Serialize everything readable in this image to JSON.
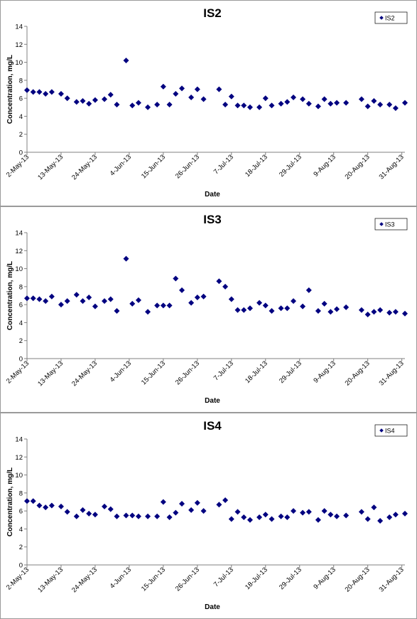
{
  "chart_data": [
    {
      "type": "scatter",
      "title": "IS2",
      "xlabel": "Date",
      "ylabel": "Concentration, mg/L",
      "ylim": [
        0,
        14
      ],
      "yticks": [
        0,
        2,
        4,
        6,
        8,
        10,
        12,
        14
      ],
      "xlim": [
        "2013-05-02",
        "2013-09-01"
      ],
      "xtick_labels": [
        "2-May-13",
        "13-May-13",
        "24-May-13",
        "4-Jun-13",
        "15-Jun-13",
        "26-Jun-13",
        "7-Jul-13",
        "18-Jul-13",
        "29-Jul-13",
        "9-Aug-13",
        "20-Aug-13",
        "31-Aug-13"
      ],
      "xtick_dates": [
        "2013-05-02",
        "2013-05-13",
        "2013-05-24",
        "2013-06-04",
        "2013-06-15",
        "2013-06-26",
        "2013-07-07",
        "2013-07-18",
        "2013-07-29",
        "2013-08-09",
        "2013-08-20",
        "2013-08-31"
      ],
      "legend": "top-right",
      "grid": false,
      "series": [
        {
          "name": "IS2",
          "color": "#000080",
          "x": [
            "2013-05-02",
            "2013-05-04",
            "2013-05-06",
            "2013-05-08",
            "2013-05-10",
            "2013-05-13",
            "2013-05-15",
            "2013-05-18",
            "2013-05-20",
            "2013-05-22",
            "2013-05-24",
            "2013-05-27",
            "2013-05-29",
            "2013-05-31",
            "2013-06-03",
            "2013-06-05",
            "2013-06-07",
            "2013-06-10",
            "2013-06-13",
            "2013-06-15",
            "2013-06-17",
            "2013-06-19",
            "2013-06-21",
            "2013-06-24",
            "2013-06-26",
            "2013-06-28",
            "2013-07-03",
            "2013-07-05",
            "2013-07-07",
            "2013-07-09",
            "2013-07-11",
            "2013-07-13",
            "2013-07-16",
            "2013-07-18",
            "2013-07-20",
            "2013-07-23",
            "2013-07-25",
            "2013-07-27",
            "2013-07-30",
            "2013-08-01",
            "2013-08-04",
            "2013-08-06",
            "2013-08-08",
            "2013-08-10",
            "2013-08-13",
            "2013-08-18",
            "2013-08-20",
            "2013-08-22",
            "2013-08-24",
            "2013-08-27",
            "2013-08-29",
            "2013-09-01"
          ],
          "y": [
            6.9,
            6.7,
            6.7,
            6.5,
            6.7,
            6.5,
            6.0,
            5.6,
            5.7,
            5.4,
            5.8,
            5.9,
            6.4,
            5.3,
            10.2,
            5.2,
            5.5,
            5.0,
            5.3,
            7.3,
            5.3,
            6.5,
            7.1,
            6.1,
            7.0,
            5.9,
            7.0,
            5.3,
            6.2,
            5.2,
            5.2,
            5.0,
            5.0,
            6.0,
            5.2,
            5.4,
            5.6,
            6.1,
            5.9,
            5.4,
            5.1,
            5.9,
            5.4,
            5.5,
            5.5,
            5.9,
            5.1,
            5.7,
            5.3,
            5.3,
            4.9,
            5.5
          ]
        }
      ]
    },
    {
      "type": "scatter",
      "title": "IS3",
      "xlabel": "Date",
      "ylabel": "Concentration, mg/L",
      "ylim": [
        0,
        14
      ],
      "yticks": [
        0,
        2,
        4,
        6,
        8,
        10,
        12,
        14
      ],
      "xlim": [
        "2013-05-02",
        "2013-09-01"
      ],
      "xtick_labels": [
        "2-May-13",
        "13-May-13",
        "24-May-13",
        "4-Jun-13",
        "15-Jun-13",
        "26-Jun-13",
        "7-Jul-13",
        "18-Jul-13",
        "29-Jul-13",
        "9-Aug-13",
        "20-Aug-13",
        "31-Aug-13"
      ],
      "xtick_dates": [
        "2013-05-02",
        "2013-05-13",
        "2013-05-24",
        "2013-06-04",
        "2013-06-15",
        "2013-06-26",
        "2013-07-07",
        "2013-07-18",
        "2013-07-29",
        "2013-08-09",
        "2013-08-20",
        "2013-08-31"
      ],
      "legend": "top-right",
      "grid": false,
      "series": [
        {
          "name": "IS3",
          "color": "#000080",
          "x": [
            "2013-05-02",
            "2013-05-04",
            "2013-05-06",
            "2013-05-08",
            "2013-05-10",
            "2013-05-13",
            "2013-05-15",
            "2013-05-18",
            "2013-05-20",
            "2013-05-22",
            "2013-05-24",
            "2013-05-27",
            "2013-05-29",
            "2013-05-31",
            "2013-06-03",
            "2013-06-05",
            "2013-06-07",
            "2013-06-10",
            "2013-06-13",
            "2013-06-15",
            "2013-06-17",
            "2013-06-19",
            "2013-06-21",
            "2013-06-24",
            "2013-06-26",
            "2013-06-28",
            "2013-07-03",
            "2013-07-05",
            "2013-07-07",
            "2013-07-09",
            "2013-07-11",
            "2013-07-13",
            "2013-07-16",
            "2013-07-18",
            "2013-07-20",
            "2013-07-23",
            "2013-07-25",
            "2013-07-27",
            "2013-07-30",
            "2013-08-01",
            "2013-08-04",
            "2013-08-06",
            "2013-08-08",
            "2013-08-10",
            "2013-08-13",
            "2013-08-18",
            "2013-08-20",
            "2013-08-22",
            "2013-08-24",
            "2013-08-27",
            "2013-08-29",
            "2013-09-01"
          ],
          "y": [
            6.7,
            6.7,
            6.6,
            6.4,
            6.9,
            6.0,
            6.4,
            7.1,
            6.4,
            6.8,
            5.8,
            6.4,
            6.6,
            5.3,
            11.1,
            6.1,
            6.5,
            5.2,
            5.9,
            5.9,
            5.9,
            8.9,
            7.6,
            6.2,
            6.8,
            6.9,
            8.6,
            8.0,
            6.6,
            5.4,
            5.4,
            5.6,
            6.2,
            5.9,
            5.3,
            5.6,
            5.6,
            6.4,
            5.8,
            7.6,
            5.3,
            6.1,
            5.2,
            5.5,
            5.7,
            5.4,
            4.9,
            5.2,
            5.4,
            5.1,
            5.2,
            5.0
          ]
        }
      ]
    },
    {
      "type": "scatter",
      "title": "IS4",
      "xlabel": "Date",
      "ylabel": "Concentration, mg/L",
      "ylim": [
        0,
        14
      ],
      "yticks": [
        0,
        2,
        4,
        6,
        8,
        10,
        12,
        14
      ],
      "xlim": [
        "2013-05-02",
        "2013-09-01"
      ],
      "xtick_labels": [
        "2-May-13",
        "13-May-13",
        "24-May-13",
        "4-Jun-13",
        "15-Jun-13",
        "26-Jun-13",
        "7-Jul-13",
        "18-Jul-13",
        "29-Jul-13",
        "9-Aug-13",
        "20-Aug-13",
        "31-Aug-13"
      ],
      "xtick_dates": [
        "2013-05-02",
        "2013-05-13",
        "2013-05-24",
        "2013-06-04",
        "2013-06-15",
        "2013-06-26",
        "2013-07-07",
        "2013-07-18",
        "2013-07-29",
        "2013-08-09",
        "2013-08-20",
        "2013-08-31"
      ],
      "legend": "top-right",
      "grid": false,
      "series": [
        {
          "name": "IS4",
          "color": "#000080",
          "x": [
            "2013-05-02",
            "2013-05-04",
            "2013-05-06",
            "2013-05-08",
            "2013-05-10",
            "2013-05-13",
            "2013-05-15",
            "2013-05-18",
            "2013-05-20",
            "2013-05-22",
            "2013-05-24",
            "2013-05-27",
            "2013-05-29",
            "2013-05-31",
            "2013-06-03",
            "2013-06-05",
            "2013-06-07",
            "2013-06-10",
            "2013-06-13",
            "2013-06-15",
            "2013-06-17",
            "2013-06-19",
            "2013-06-21",
            "2013-06-24",
            "2013-06-26",
            "2013-06-28",
            "2013-07-03",
            "2013-07-05",
            "2013-07-07",
            "2013-07-09",
            "2013-07-11",
            "2013-07-13",
            "2013-07-16",
            "2013-07-18",
            "2013-07-20",
            "2013-07-23",
            "2013-07-25",
            "2013-07-27",
            "2013-07-30",
            "2013-08-01",
            "2013-08-04",
            "2013-08-06",
            "2013-08-08",
            "2013-08-10",
            "2013-08-13",
            "2013-08-18",
            "2013-08-20",
            "2013-08-22",
            "2013-08-24",
            "2013-08-27",
            "2013-08-29",
            "2013-09-01"
          ],
          "y": [
            7.1,
            7.1,
            6.6,
            6.4,
            6.6,
            6.5,
            5.9,
            5.4,
            6.1,
            5.7,
            5.6,
            6.5,
            6.2,
            5.4,
            5.5,
            5.5,
            5.4,
            5.4,
            5.4,
            7.0,
            5.3,
            5.8,
            6.8,
            6.1,
            6.9,
            6.0,
            6.7,
            7.2,
            5.1,
            5.9,
            5.3,
            5.0,
            5.3,
            5.6,
            5.1,
            5.4,
            5.3,
            6.0,
            5.8,
            5.9,
            5.0,
            6.0,
            5.6,
            5.4,
            5.5,
            5.9,
            5.1,
            6.4,
            4.9,
            5.3,
            5.6,
            5.7
          ]
        }
      ]
    }
  ]
}
